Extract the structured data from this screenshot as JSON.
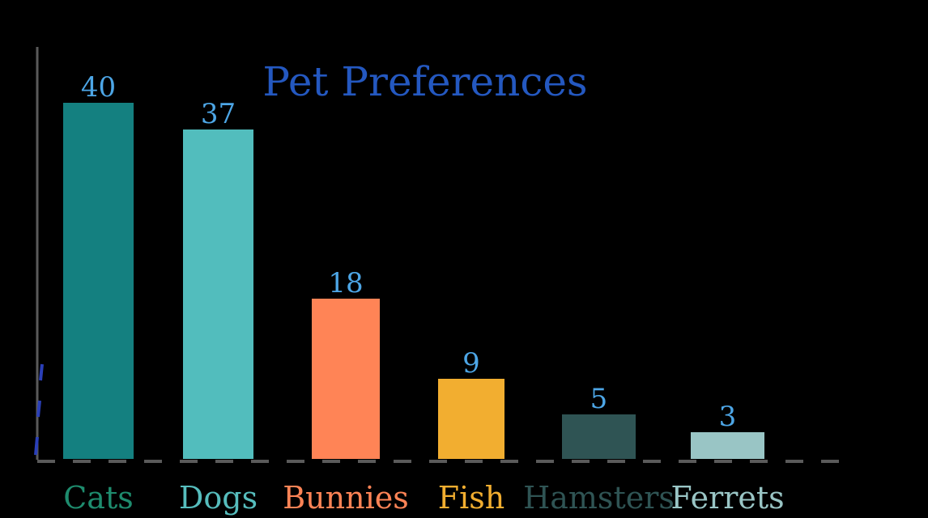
{
  "chart_data": {
    "type": "bar",
    "title": "Pet Preferences",
    "xlabel": "",
    "ylabel": "",
    "categories": [
      "Cats",
      "Dogs",
      "Bunnies",
      "Fish",
      "Hamsters",
      "Ferrets"
    ],
    "values": [
      40,
      37,
      18,
      9,
      5,
      3
    ],
    "value_labels": [
      "40",
      "37",
      "18",
      "9",
      "5",
      "3"
    ],
    "bar_colors": [
      "#148080",
      "#52BDBD",
      "#FF8456",
      "#F2AE30",
      "#2F5454",
      "#99C5C5"
    ],
    "label_colors": [
      "#1E8C6E",
      "#56BDBD",
      "#FF8456",
      "#F2AE30",
      "#2F5454",
      "#99C5C5"
    ],
    "value_label_color": "#4DA6E6",
    "title_color": "#2458C0",
    "ylim": [
      0,
      40
    ],
    "grid": false,
    "legend": "none"
  }
}
